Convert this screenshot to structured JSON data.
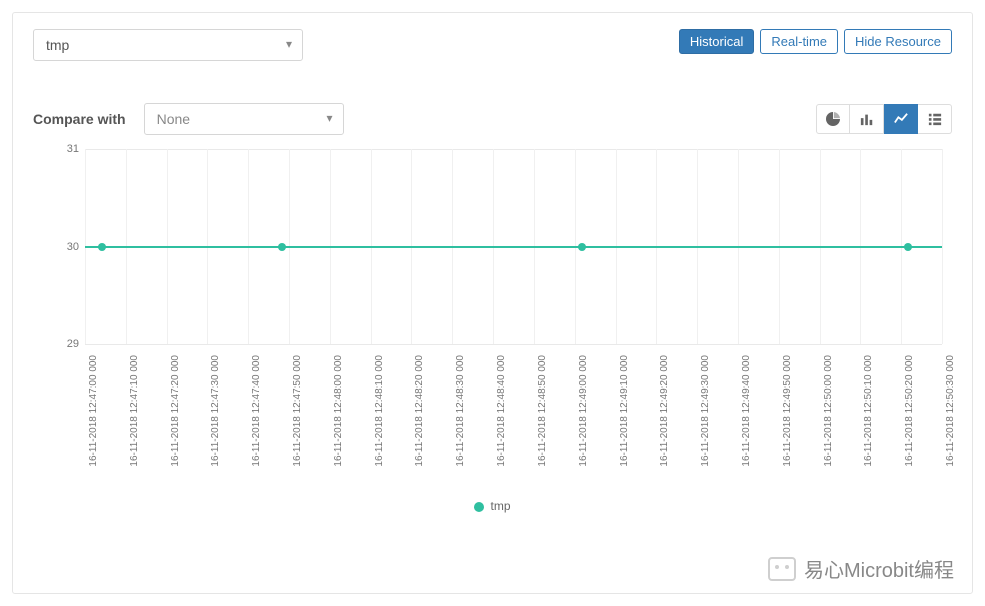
{
  "topSelect": {
    "value": "tmp"
  },
  "buttons": {
    "historical": "Historical",
    "realtime": "Real-time",
    "hideResource": "Hide Resource"
  },
  "compare": {
    "label": "Compare with",
    "selected": "None"
  },
  "viewIcons": {
    "pie": "pie-chart-icon",
    "bar": "bar-chart-icon",
    "line": "line-chart-icon",
    "list": "list-icon",
    "active": "line"
  },
  "chart": {
    "type": "line",
    "series_name": "tmp",
    "series_color": "#2fbfa0",
    "background_color": "#ffffff",
    "grid_color": "#e9e9e9",
    "xgrid_color": "#f0f0f0",
    "tick_color": "#777777",
    "ylim": [
      29,
      31
    ],
    "yticks": [
      29,
      30,
      31
    ],
    "x_labels": [
      "16-11-2018 12:47:00 000",
      "16-11-2018 12:47:10 000",
      "16-11-2018 12:47:20 000",
      "16-11-2018 12:47:30 000",
      "16-11-2018 12:47:40 000",
      "16-11-2018 12:47:50 000",
      "16-11-2018 12:48:00 000",
      "16-11-2018 12:48:10 000",
      "16-11-2018 12:48:20 000",
      "16-11-2018 12:48:30 000",
      "16-11-2018 12:48:40 000",
      "16-11-2018 12:48:50 000",
      "16-11-2018 12:49:00 000",
      "16-11-2018 12:49:10 000",
      "16-11-2018 12:49:20 000",
      "16-11-2018 12:49:30 000",
      "16-11-2018 12:49:40 000",
      "16-11-2018 12:49:50 000",
      "16-11-2018 12:50:00 000",
      "16-11-2018 12:50:10 000",
      "16-11-2018 12:50:20 000",
      "16-11-2018 12:50:30 000"
    ],
    "points": [
      {
        "x": 0.02,
        "y": 30
      },
      {
        "x": 0.23,
        "y": 30
      },
      {
        "x": 0.58,
        "y": 30
      },
      {
        "x": 0.96,
        "y": 30
      }
    ],
    "line_width": 2,
    "marker_radius": 4,
    "legend_label": "tmp"
  },
  "watermark": "易心Microbit编程"
}
